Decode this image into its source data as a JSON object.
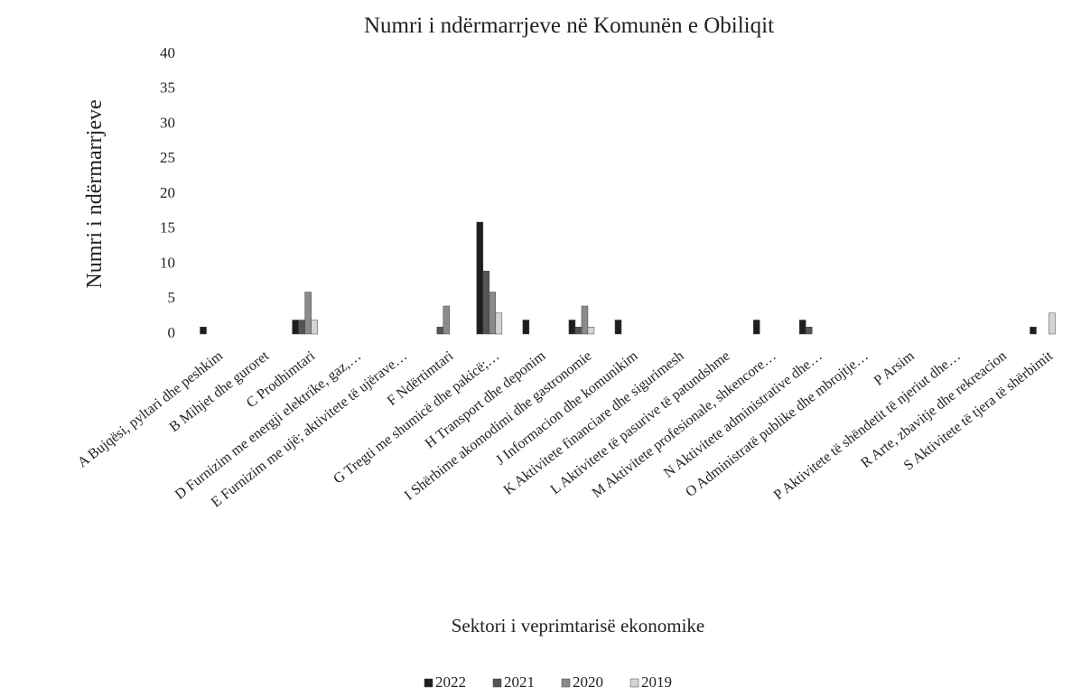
{
  "chart_data": {
    "type": "bar",
    "title": "Numri i ndërmarrjeve në Komunën e Obiliqit",
    "x_label": "Sektori i veprimtarisë ekonomike",
    "y_label": "Numri i ndërmarrjeve",
    "categories": [
      "A Bujqësi, pyltari dhe peshkim",
      "B Mihjet dhe guroret",
      "C Prodhimtari",
      "D Furnizim me energji elektrike, gaz,…",
      "E Furnizim me ujë; aktivitete të ujërave…",
      "F Ndërtimtari",
      "G Tregti me shumicë dhe pakicë;…",
      "H Transport dhe deponim",
      "I Shërbime akomodimi dhe gastronomie",
      "J Informacion dhe komunikim",
      "K Aktivitete financiare dhe sigurimesh",
      "L Aktivitete të pasurive të patundshme",
      "M Aktivitete profesionale, shkencore…",
      "N Aktivitete administrative dhe…",
      "O Administratë publike dhe mbrojtje…",
      "P Arsim",
      "P Aktivitete të shëndetit të njeriut dhe…",
      "R Arte, zbavitje dhe rekreacion",
      "S Aktivitete të tjera të shërbimit"
    ],
    "series": [
      {
        "name": "2022",
        "color": "#1e1e1e",
        "values": [
          1,
          0,
          2,
          0,
          0,
          0,
          16,
          2,
          2,
          2,
          0,
          0,
          2,
          2,
          0,
          0,
          0,
          0,
          1
        ]
      },
      {
        "name": "2021",
        "color": "#555555",
        "values": [
          0,
          0,
          2,
          0,
          0,
          1,
          9,
          0,
          1,
          0,
          0,
          0,
          0,
          1,
          0,
          0,
          0,
          0,
          0
        ]
      },
      {
        "name": "2020",
        "color": "#8a8a8a",
        "values": [
          0,
          0,
          6,
          0,
          0,
          4,
          6,
          0,
          4,
          0,
          0,
          0,
          0,
          0,
          0,
          0,
          0,
          0,
          0
        ]
      },
      {
        "name": "2019",
        "color": "#d4d4d4",
        "values": [
          0,
          0,
          2,
          0,
          0,
          0,
          3,
          0,
          1,
          0,
          0,
          0,
          0,
          0,
          0,
          0,
          0,
          0,
          3
        ]
      }
    ],
    "ylim": [
      0,
      40
    ],
    "yticks": [
      0,
      5,
      10,
      15,
      20,
      25,
      30,
      35,
      40
    ],
    "legend": "bottom"
  }
}
